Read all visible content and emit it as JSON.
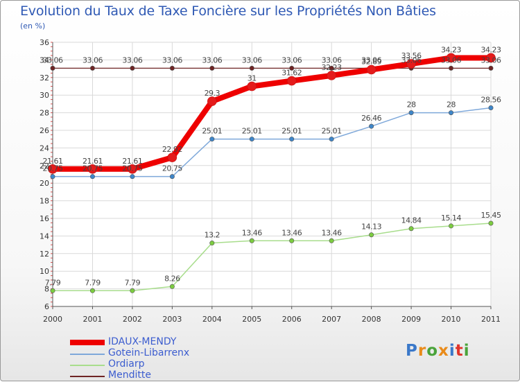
{
  "title": "Evolution du Taux de Taxe Foncière sur les Propriétés Non Bâties",
  "unit_label": "(en %)",
  "logo": {
    "text": "Proxiti",
    "colors": [
      "#3a78c9",
      "#e98b1a",
      "#4aa33a",
      "#e98b1a",
      "#3a78c9",
      "#e0342a",
      "#4aa33a"
    ]
  },
  "chart_data": {
    "type": "line",
    "title": "Evolution du Taux de Taxe Foncière sur les Propriétés Non Bâties",
    "ylabel": "(en %)",
    "x": [
      "2000",
      "2001",
      "2002",
      "2003",
      "2004",
      "2005",
      "2006",
      "2007",
      "2008",
      "2009",
      "2010",
      "2011"
    ],
    "ylim": [
      6,
      36
    ],
    "yticks": [
      6,
      8,
      10,
      12,
      14,
      16,
      18,
      20,
      22,
      24,
      26,
      28,
      30,
      32,
      34,
      36
    ],
    "grid": true,
    "legend_position": "bottom-left",
    "series": [
      {
        "name": "Menditte",
        "color": "#6e2424",
        "marker": "#6e2424",
        "width": 1.2,
        "values": [
          33.06,
          33.06,
          33.06,
          33.06,
          33.06,
          33.06,
          33.06,
          33.06,
          33.06,
          33.06,
          33.06,
          33.06
        ],
        "labels": [
          "33.06",
          "33.06",
          "33.06",
          "33.06",
          "33.06",
          "33.06",
          "33.06",
          "33.06",
          "33.06",
          "33.06",
          "33.06",
          "33.06"
        ]
      },
      {
        "name": "Ordiarp",
        "color": "#a8dd8c",
        "marker": "#7ccc40",
        "width": 1.5,
        "values": [
          7.79,
          7.79,
          7.79,
          8.26,
          13.2,
          13.46,
          13.46,
          13.46,
          14.13,
          14.84,
          15.14,
          15.45
        ],
        "labels": [
          "7.79",
          "7.79",
          "7.79",
          "8.26",
          "13.2",
          "13.46",
          "13.46",
          "13.46",
          "14.13",
          "14.84",
          "15.14",
          "15.45"
        ]
      },
      {
        "name": "Gotein-Libarrenx",
        "color": "#7ea8da",
        "marker": "#3e86c9",
        "width": 1.5,
        "values": [
          20.75,
          20.75,
          20.75,
          20.75,
          25.01,
          25.01,
          25.01,
          25.01,
          26.46,
          28,
          28,
          28.56
        ],
        "labels": [
          "20.75",
          "20.75",
          "20.75",
          "20.75",
          "25.01",
          "25.01",
          "25.01",
          "25.01",
          "26.46",
          "28",
          "28",
          "28.56"
        ]
      },
      {
        "name": "IDAUX-MENDY",
        "color": "#ee0000",
        "marker": "#e41b1b",
        "width": 8,
        "values": [
          21.61,
          21.61,
          21.61,
          22.92,
          29.3,
          31,
          31.62,
          32.23,
          32.89,
          33.56,
          34.23,
          34.23
        ],
        "labels": [
          "21.61",
          "21.61",
          "21.61",
          "22.92",
          "29.3",
          "31",
          "31.62",
          "32.23",
          "32.89",
          "33.56",
          "34.23",
          "34.23"
        ]
      }
    ],
    "legend": [
      "IDAUX-MENDY",
      "Gotein-Libarrenx",
      "Ordiarp",
      "Menditte"
    ]
  }
}
